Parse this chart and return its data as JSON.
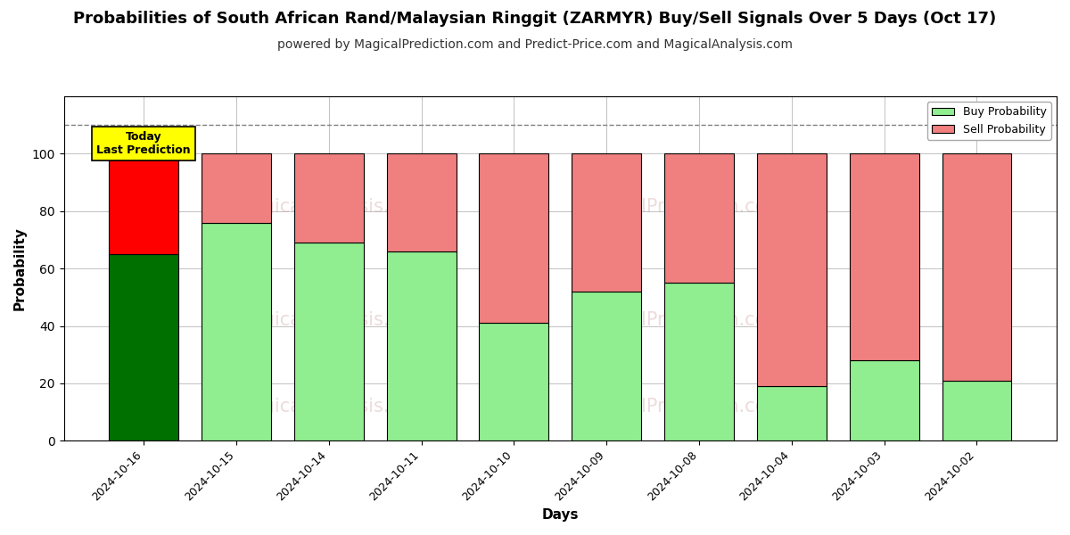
{
  "title": "Probabilities of South African Rand/Malaysian Ringgit (ZARMYR) Buy/Sell Signals Over 5 Days (Oct 17)",
  "subtitle": "powered by MagicalPrediction.com and Predict-Price.com and MagicalAnalysis.com",
  "xlabel": "Days",
  "ylabel": "Probability",
  "categories": [
    "2024-10-16",
    "2024-10-15",
    "2024-10-14",
    "2024-10-11",
    "2024-10-10",
    "2024-10-09",
    "2024-10-08",
    "2024-10-04",
    "2024-10-03",
    "2024-10-02"
  ],
  "buy_values": [
    65,
    76,
    69,
    66,
    41,
    52,
    55,
    19,
    28,
    21
  ],
  "sell_values": [
    35,
    24,
    31,
    34,
    59,
    48,
    45,
    81,
    72,
    79
  ],
  "buy_colors": [
    "#007000",
    "#90EE90",
    "#90EE90",
    "#90EE90",
    "#90EE90",
    "#90EE90",
    "#90EE90",
    "#90EE90",
    "#90EE90",
    "#90EE90"
  ],
  "sell_colors": [
    "#FF0000",
    "#F08080",
    "#F08080",
    "#F08080",
    "#F08080",
    "#F08080",
    "#F08080",
    "#F08080",
    "#F08080",
    "#F08080"
  ],
  "ylim": [
    0,
    120
  ],
  "yticks": [
    0,
    20,
    40,
    60,
    80,
    100
  ],
  "dashed_line_y": 110,
  "today_label_text": "Today\nLast Prediction",
  "today_label_bg": "#FFFF00",
  "legend_buy_color": "#90EE90",
  "legend_sell_color": "#F08080",
  "legend_buy_label": "Buy Probability",
  "legend_sell_label": "Sell Probability",
  "bg_color": "#ffffff",
  "grid_color": "#aaaaaa",
  "bar_edge_color": "#000000",
  "title_fontsize": 13,
  "subtitle_fontsize": 10
}
